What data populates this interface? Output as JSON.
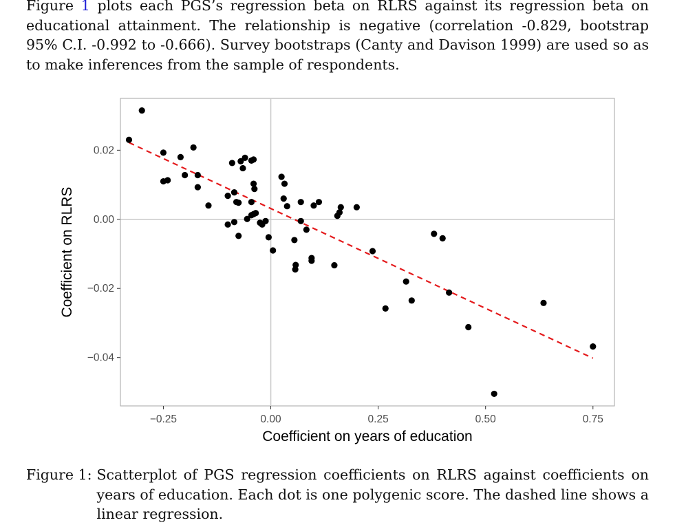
{
  "paragraph": {
    "prefix": "Figure ",
    "ref": "1",
    "body": " plots each PGS’s regression beta on RLRS against its regression beta on educational attainment. The relationship is negative (correlation -0.829, bootstrap 95% C.I. -0.992 to -0.666). Survey bootstraps (Canty and Davison 1999) are used so as to make inferences from the sample of respondents."
  },
  "caption": {
    "label": "Figure 1:",
    "text": "Scatterplot of PGS regression coefficients on RLRS against coefficients on years of education. Each dot is one polygenic score. The dashed line shows a linear regression."
  },
  "colors": {
    "point": "#000000",
    "regression_line": "#e41a1c",
    "gridline": "#cccccc",
    "panel_border": "#b3b3b3",
    "link": "#1f1fd6"
  },
  "chart_data": {
    "type": "scatter",
    "title": "",
    "xlabel": "Coefficient on years of education",
    "ylabel": "Coefficient on RLRS",
    "xlim": [
      -0.35,
      0.8
    ],
    "ylim": [
      -0.054,
      0.035
    ],
    "xticks": [
      -0.25,
      0,
      0.25,
      0.5,
      0.75
    ],
    "xtick_labels": [
      "−0.25",
      "0.00",
      "0.25",
      "0.50",
      "0.75"
    ],
    "yticks": [
      -0.04,
      -0.02,
      0,
      0.02
    ],
    "ytick_labels": [
      "−0.04",
      "−0.02",
      "0.00",
      "0.02"
    ],
    "reference_lines": {
      "x": 0,
      "y": 0
    },
    "grid": false,
    "points": [
      [
        -0.3,
        0.0315
      ],
      [
        -0.33,
        0.023
      ],
      [
        -0.25,
        0.0193
      ],
      [
        -0.18,
        0.0208
      ],
      [
        -0.21,
        0.018
      ],
      [
        -0.25,
        0.011
      ],
      [
        -0.24,
        0.0113
      ],
      [
        -0.2,
        0.0128
      ],
      [
        -0.17,
        0.0128
      ],
      [
        -0.17,
        0.0093
      ],
      [
        -0.145,
        0.004
      ],
      [
        -0.09,
        0.0163
      ],
      [
        -0.07,
        0.0168
      ],
      [
        -0.06,
        0.0178
      ],
      [
        -0.04,
        0.0173
      ],
      [
        -0.045,
        0.017
      ],
      [
        -0.065,
        0.0148
      ],
      [
        -0.1,
        0.0068
      ],
      [
        -0.085,
        0.0078
      ],
      [
        -0.08,
        0.005
      ],
      [
        -0.075,
        0.0048
      ],
      [
        -0.04,
        0.0103
      ],
      [
        -0.038,
        0.0088
      ],
      [
        -0.045,
        0.005
      ],
      [
        -0.04,
        0.0015
      ],
      [
        -0.045,
        0.0012
      ],
      [
        -0.035,
        0.0018
      ],
      [
        -0.055,
        0.0001
      ],
      [
        -0.1,
        -0.0015
      ],
      [
        -0.085,
        -0.0008
      ],
      [
        -0.075,
        -0.0048
      ],
      [
        -0.025,
        -0.001
      ],
      [
        -0.02,
        -0.0015
      ],
      [
        -0.012,
        -0.0005
      ],
      [
        -0.005,
        -0.0052
      ],
      [
        0.005,
        -0.009
      ],
      [
        0.025,
        0.0123
      ],
      [
        0.032,
        0.0103
      ],
      [
        0.03,
        0.006
      ],
      [
        0.038,
        0.0038
      ],
      [
        0.07,
        0.005
      ],
      [
        0.07,
        -0.0005
      ],
      [
        0.083,
        -0.003
      ],
      [
        0.1,
        0.004
      ],
      [
        0.112,
        0.005
      ],
      [
        0.055,
        -0.006
      ],
      [
        0.058,
        -0.0132
      ],
      [
        0.057,
        -0.0145
      ],
      [
        0.095,
        -0.0112
      ],
      [
        0.095,
        -0.012
      ],
      [
        0.148,
        -0.0133
      ],
      [
        0.155,
        0.001
      ],
      [
        0.16,
        0.002
      ],
      [
        0.163,
        0.0035
      ],
      [
        0.2,
        0.0035
      ],
      [
        0.237,
        -0.0092
      ],
      [
        0.267,
        -0.0258
      ],
      [
        0.315,
        -0.018
      ],
      [
        0.328,
        -0.0235
      ],
      [
        0.38,
        -0.0042
      ],
      [
        0.4,
        -0.0055
      ],
      [
        0.415,
        -0.0212
      ],
      [
        0.46,
        -0.0312
      ],
      [
        0.52,
        -0.0505
      ],
      [
        0.635,
        -0.0242
      ],
      [
        0.75,
        -0.0368
      ]
    ],
    "regression": {
      "style": "dashed",
      "x": [
        -0.33,
        0.75
      ],
      "y": [
        0.0222,
        -0.0402
      ]
    }
  }
}
